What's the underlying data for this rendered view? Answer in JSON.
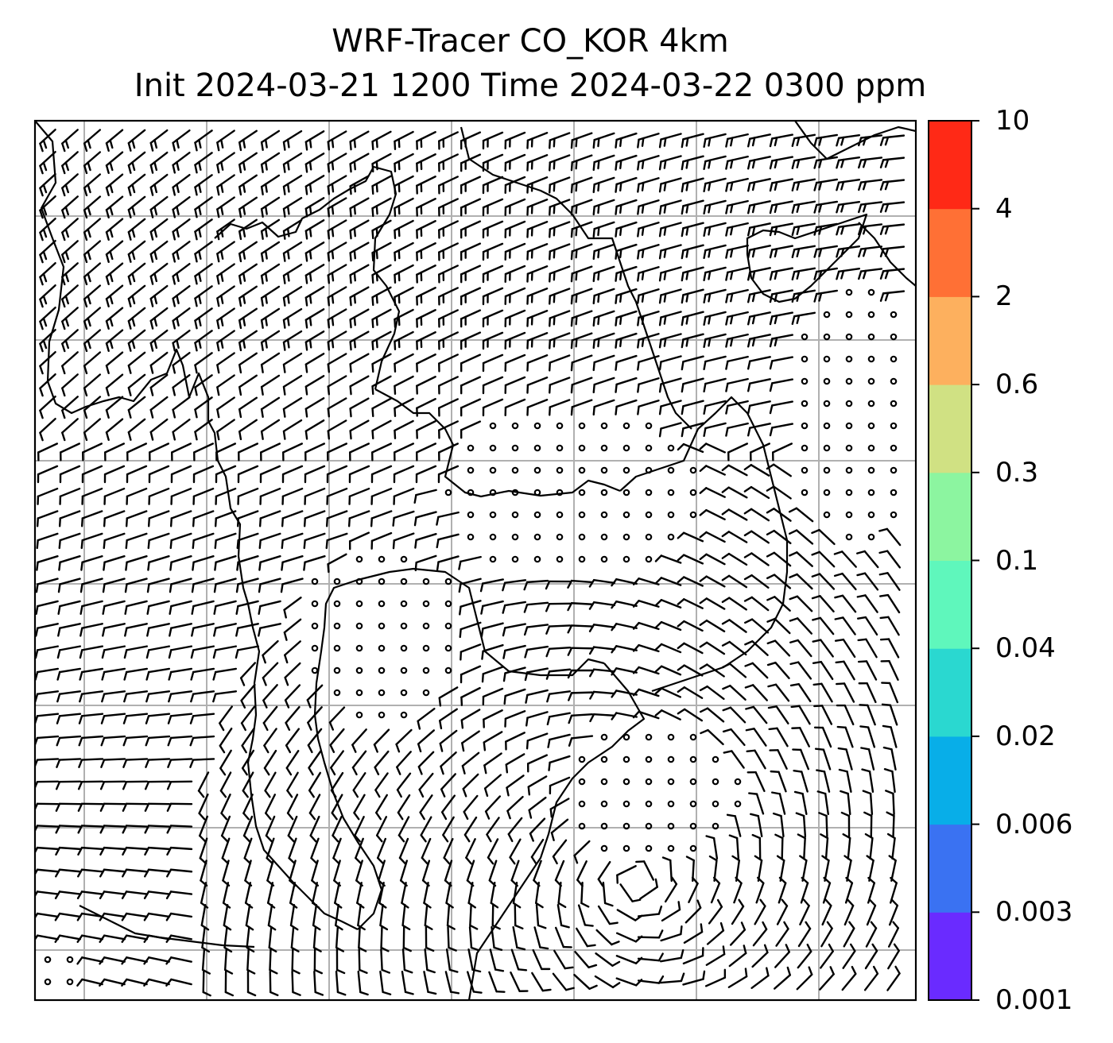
{
  "title": {
    "line1": "WRF-Tracer CO_KOR 4km",
    "line2": "Init 2024-03-21 1200 Time 2024-03-22 0300 ppm"
  },
  "colorbar": {
    "levels": [
      "0.001",
      "0.003",
      "0.006",
      "0.02",
      "0.04",
      "0.1",
      "0.3",
      "0.6",
      "2",
      "4",
      "10"
    ],
    "colors": [
      "#6a2bff",
      "#3a72f2",
      "#08aee8",
      "#2ad8d0",
      "#5ff7bc",
      "#8cf5a0",
      "#d0e183",
      "#fdb05e",
      "#ff7035",
      "#ff2916"
    ]
  },
  "map": {
    "grid_color": "#b0b0b0",
    "barb_color": "#000000",
    "coastline_color": "#000000"
  }
}
